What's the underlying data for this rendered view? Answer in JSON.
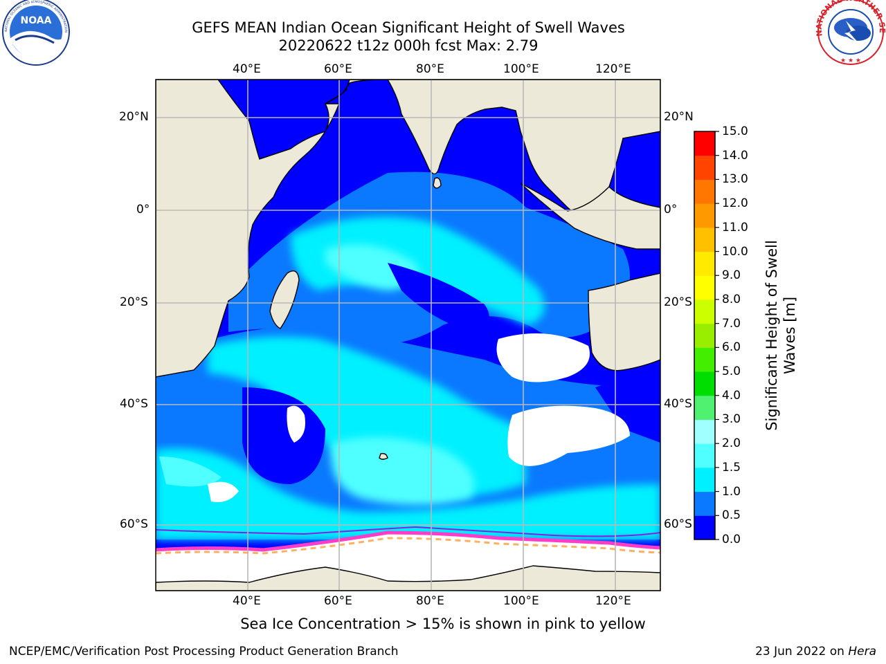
{
  "title": {
    "line1": "GEFS MEAN Indian Ocean Significant Height of Swell Waves",
    "line2": "20220622 t12z 000h fcst   Max: 2.79"
  },
  "map": {
    "lon_labels": [
      "40°E",
      "60°E",
      "80°E",
      "100°E",
      "120°E"
    ],
    "lat_labels": [
      "20°N",
      "0°",
      "20°S",
      "40°S",
      "60°S"
    ],
    "colors": {
      "land": "#ede9d9",
      "frame": "#000000",
      "grid": "#b8b8b8"
    }
  },
  "colorbar": {
    "label_line1": "Significant Height of Swell",
    "label_line2": "Waves [m]",
    "ticks": [
      "0.0",
      "0.5",
      "1.0",
      "1.5",
      "2.0",
      "3.0",
      "4.0",
      "5.0",
      "6.0",
      "7.0",
      "8.0",
      "9.0",
      "10.0",
      "11.0",
      "12.0",
      "13.0",
      "14.0",
      "15.0"
    ],
    "colors": [
      "#0000ff",
      "#0a78ff",
      "#00f0ff",
      "#50ffff",
      "#a0ffff",
      "#50f070",
      "#00dd00",
      "#44ee00",
      "#99ee00",
      "#ccff00",
      "#ffff00",
      "#ffea00",
      "#ffc000",
      "#ff9900",
      "#ff7700",
      "#ff4400",
      "#ff0000"
    ]
  },
  "ice_caption": "Sea Ice Concentration > 15% is shown in pink to yellow",
  "footer": {
    "left": "NCEP/EMC/Verification Post Processing Product Generation Branch",
    "date": "23 Jun 2022 on ",
    "machine": "Hera"
  },
  "logos": {
    "noaa": "NOAA",
    "noaa_ring": "NATIONAL OCEANIC AND ATMOSPHERIC ADMINISTRATION · U.S. DEPARTMENT OF COMMERCE",
    "nws_ring": "NATIONAL WEATHER SERVICE"
  }
}
